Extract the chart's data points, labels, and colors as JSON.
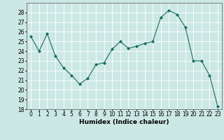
{
  "x": [
    0,
    1,
    2,
    3,
    4,
    5,
    6,
    7,
    8,
    9,
    10,
    11,
    12,
    13,
    14,
    15,
    16,
    17,
    18,
    19,
    20,
    21,
    22,
    23
  ],
  "y": [
    25.5,
    24.0,
    25.8,
    23.5,
    22.3,
    21.5,
    20.6,
    21.2,
    22.6,
    22.8,
    24.2,
    25.0,
    24.3,
    24.5,
    24.8,
    25.0,
    27.5,
    28.2,
    27.8,
    26.5,
    23.0,
    23.0,
    21.5,
    18.3
  ],
  "line_color": "#1a6b5a",
  "marker": "D",
  "marker_size": 2,
  "bg_color": "#cce8e4",
  "grid_color": "#ffffff",
  "xlabel": "Humidex (Indice chaleur)",
  "ylabel": "",
  "ylim": [
    18,
    29
  ],
  "xlim": [
    -0.5,
    23.5
  ],
  "yticks": [
    18,
    19,
    20,
    21,
    22,
    23,
    24,
    25,
    26,
    27,
    28
  ],
  "xticks": [
    0,
    1,
    2,
    3,
    4,
    5,
    6,
    7,
    8,
    9,
    10,
    11,
    12,
    13,
    14,
    15,
    16,
    17,
    18,
    19,
    20,
    21,
    22,
    23
  ],
  "tick_fontsize": 5.5,
  "xlabel_fontsize": 6.5
}
